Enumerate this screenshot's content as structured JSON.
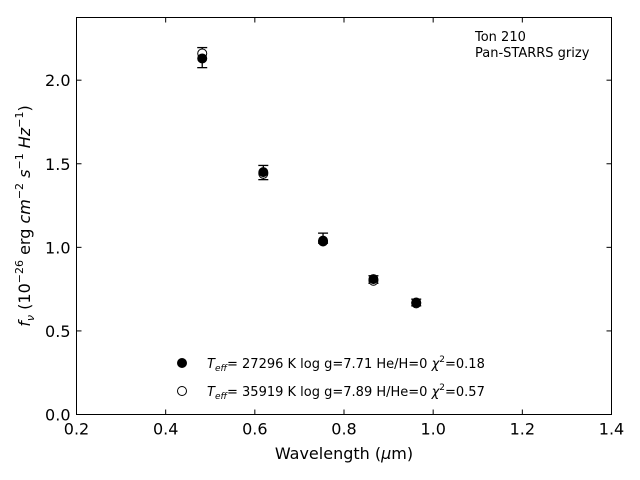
{
  "chart_data": {
    "type": "scatter",
    "annotation_lines": [
      "Ton 210",
      "Pan-STARRS grizy"
    ],
    "xlabel": {
      "main": "Wavelength (",
      "mu": "μ",
      "rest": "m)"
    },
    "ylabel": {
      "f": "f",
      "nu": "ν",
      "open": " (10",
      "e1": "−26",
      "mid1": " erg ",
      "cm": "cm",
      "e2": "−2",
      "mid2": " ",
      "s": "s",
      "e3": "−1",
      "mid3": " ",
      "hz": "Hz",
      "e4": "−1",
      "close": ")"
    },
    "xlim": [
      0.2,
      1.4
    ],
    "ylim": [
      0.0,
      2.375
    ],
    "xticks": [
      0.2,
      0.4,
      0.6,
      0.8,
      1.0,
      1.2,
      1.4
    ],
    "yticks": [
      0.0,
      0.5,
      1.0,
      1.5,
      2.0
    ],
    "x_tick_labels": [
      "0.2",
      "0.4",
      "0.6",
      "0.8",
      "1.0",
      "1.2",
      "1.4"
    ],
    "y_tick_labels": [
      "0.0",
      "0.5",
      "1.0",
      "1.5",
      "2.0"
    ],
    "observed": {
      "x": [
        0.482,
        0.619,
        0.753,
        0.866,
        0.962
      ],
      "y": [
        2.135,
        1.445,
        1.045,
        0.805,
        0.67
      ],
      "err_upper": [
        2.195,
        1.49,
        1.085,
        0.83,
        0.69
      ],
      "err_lower": [
        2.075,
        1.405,
        1.025,
        0.785,
        0.65
      ]
    },
    "series": [
      {
        "marker": "filled",
        "label": {
          "t": "T",
          "sub": "eff",
          "mid": "= 27296 K  log g=7.71  He/H=0  ",
          "chi": "χ",
          "sup": "2",
          "end": "=0.18"
        },
        "x": [
          0.482,
          0.619,
          0.753,
          0.866,
          0.962
        ],
        "y": [
          2.13,
          1.45,
          1.04,
          0.81,
          0.67
        ]
      },
      {
        "marker": "open",
        "label": {
          "t": "T",
          "sub": "eff",
          "mid": "= 35919 K  log g=7.89  H/He=0  ",
          "chi": "χ",
          "sup": "2",
          "end": "=0.57"
        },
        "x": [
          0.482,
          0.619,
          0.753,
          0.866,
          0.962
        ],
        "y": [
          2.16,
          1.44,
          1.035,
          0.8,
          0.665
        ]
      }
    ],
    "legend_position": "lower-center",
    "grid": false,
    "colors": {
      "marker": "#000000",
      "axes": "#000000"
    }
  }
}
